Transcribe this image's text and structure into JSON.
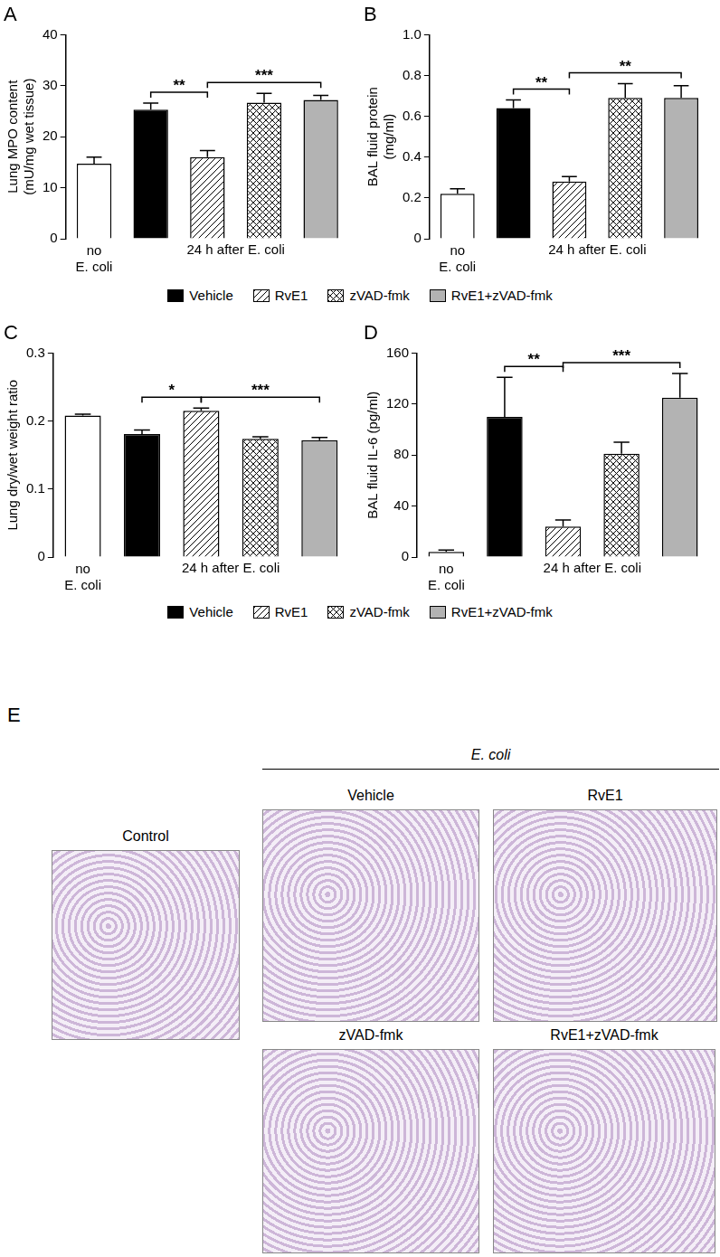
{
  "chart_data": [
    {
      "type": "bar",
      "title": "A",
      "ylabel": [
        "Lung MPO content",
        "(mU/mg wet tissue)"
      ],
      "categories": [
        "no E. coli",
        null,
        null,
        null,
        null
      ],
      "group_label": "24 h after E. coli",
      "values": [
        14.7,
        25.3,
        16.0,
        26.7,
        27.2
      ],
      "errors": [
        1.3,
        1.3,
        1.3,
        1.8,
        0.9
      ],
      "colors": [
        "#ffffff",
        "#000000",
        "#ffffff",
        "#ffffff",
        "#b3b3b3"
      ],
      "ylim": [
        0,
        40
      ],
      "yticks": [
        0,
        10,
        20,
        30,
        40
      ],
      "grid": false,
      "significance": [
        {
          "label": "**",
          "from": 1,
          "to": 2
        },
        {
          "label": "***",
          "from": 2,
          "to": 4
        }
      ]
    },
    {
      "type": "bar",
      "title": "B",
      "ylabel": [
        "BAL fluid protein",
        "(mg/ml)"
      ],
      "categories": [
        "no E. coli",
        null,
        null,
        null,
        null
      ],
      "group_label": "24 h after E. coli",
      "values": [
        0.22,
        0.64,
        0.28,
        0.69,
        0.69
      ],
      "errors": [
        0.025,
        0.04,
        0.025,
        0.07,
        0.06
      ],
      "colors": [
        "#ffffff",
        "#000000",
        "#ffffff",
        "#ffffff",
        "#b3b3b3"
      ],
      "ylim": [
        0,
        1.0
      ],
      "yticks": [
        0,
        0.2,
        0.4,
        0.6,
        0.8,
        {
          "value": 1.0,
          "label": "1.0"
        }
      ],
      "grid": false,
      "significance": [
        {
          "label": "**",
          "from": 1,
          "to": 2
        },
        {
          "label": "**",
          "from": 2,
          "to": 4
        }
      ]
    },
    {
      "type": "bar",
      "title": "C",
      "ylabel": [
        "Lung dry/wet weight ratio"
      ],
      "categories": [
        "no E. coli",
        null,
        null,
        null,
        null
      ],
      "group_label": "24 h after E. coli",
      "values": [
        0.208,
        0.181,
        0.215,
        0.174,
        0.172
      ],
      "errors": [
        0.002,
        0.006,
        0.004,
        0.003,
        0.004
      ],
      "colors": [
        "#ffffff",
        "#000000",
        "#ffffff",
        "#ffffff",
        "#b3b3b3"
      ],
      "ylim": [
        0,
        0.3
      ],
      "yticks": [
        0,
        0.1,
        0.2,
        0.3
      ],
      "grid": false,
      "significance": [
        {
          "label": "*",
          "from": 1,
          "to": 2
        },
        {
          "label": "***",
          "from": 2,
          "to": 4
        }
      ]
    },
    {
      "type": "bar",
      "title": "D",
      "ylabel": [
        "BAL fluid IL-6 (pg/ml)"
      ],
      "categories": [
        "no E. coli",
        null,
        null,
        null,
        null
      ],
      "group_label": "24 h after E. coli",
      "values": [
        4,
        110,
        24,
        81,
        125
      ],
      "errors": [
        1.5,
        31,
        5,
        9,
        19
      ],
      "colors": [
        "#ffffff",
        "#000000",
        "#ffffff",
        "#ffffff",
        "#b3b3b3"
      ],
      "ylim": [
        0,
        160
      ],
      "yticks": [
        0,
        40,
        80,
        120,
        160
      ],
      "grid": false,
      "significance": [
        {
          "label": "**",
          "from": 1,
          "to": 2
        },
        {
          "label": "***",
          "from": 2,
          "to": 4
        }
      ]
    }
  ],
  "legend": [
    {
      "name": "Vehicle",
      "color": "#000000"
    },
    {
      "name": "RvE1",
      "color": "#ffffff"
    },
    {
      "name": "zVAD-fmk",
      "color": "#ffffff"
    },
    {
      "name": "RvE1+zVAD-fmk",
      "color": "#b3b3b3"
    }
  ],
  "panel_e": {
    "title": "E",
    "group_label": "E. coli",
    "images": [
      "Control",
      "Vehicle",
      "RvE1",
      "zVAD-fmk",
      "RvE1+zVAD-fmk"
    ]
  }
}
